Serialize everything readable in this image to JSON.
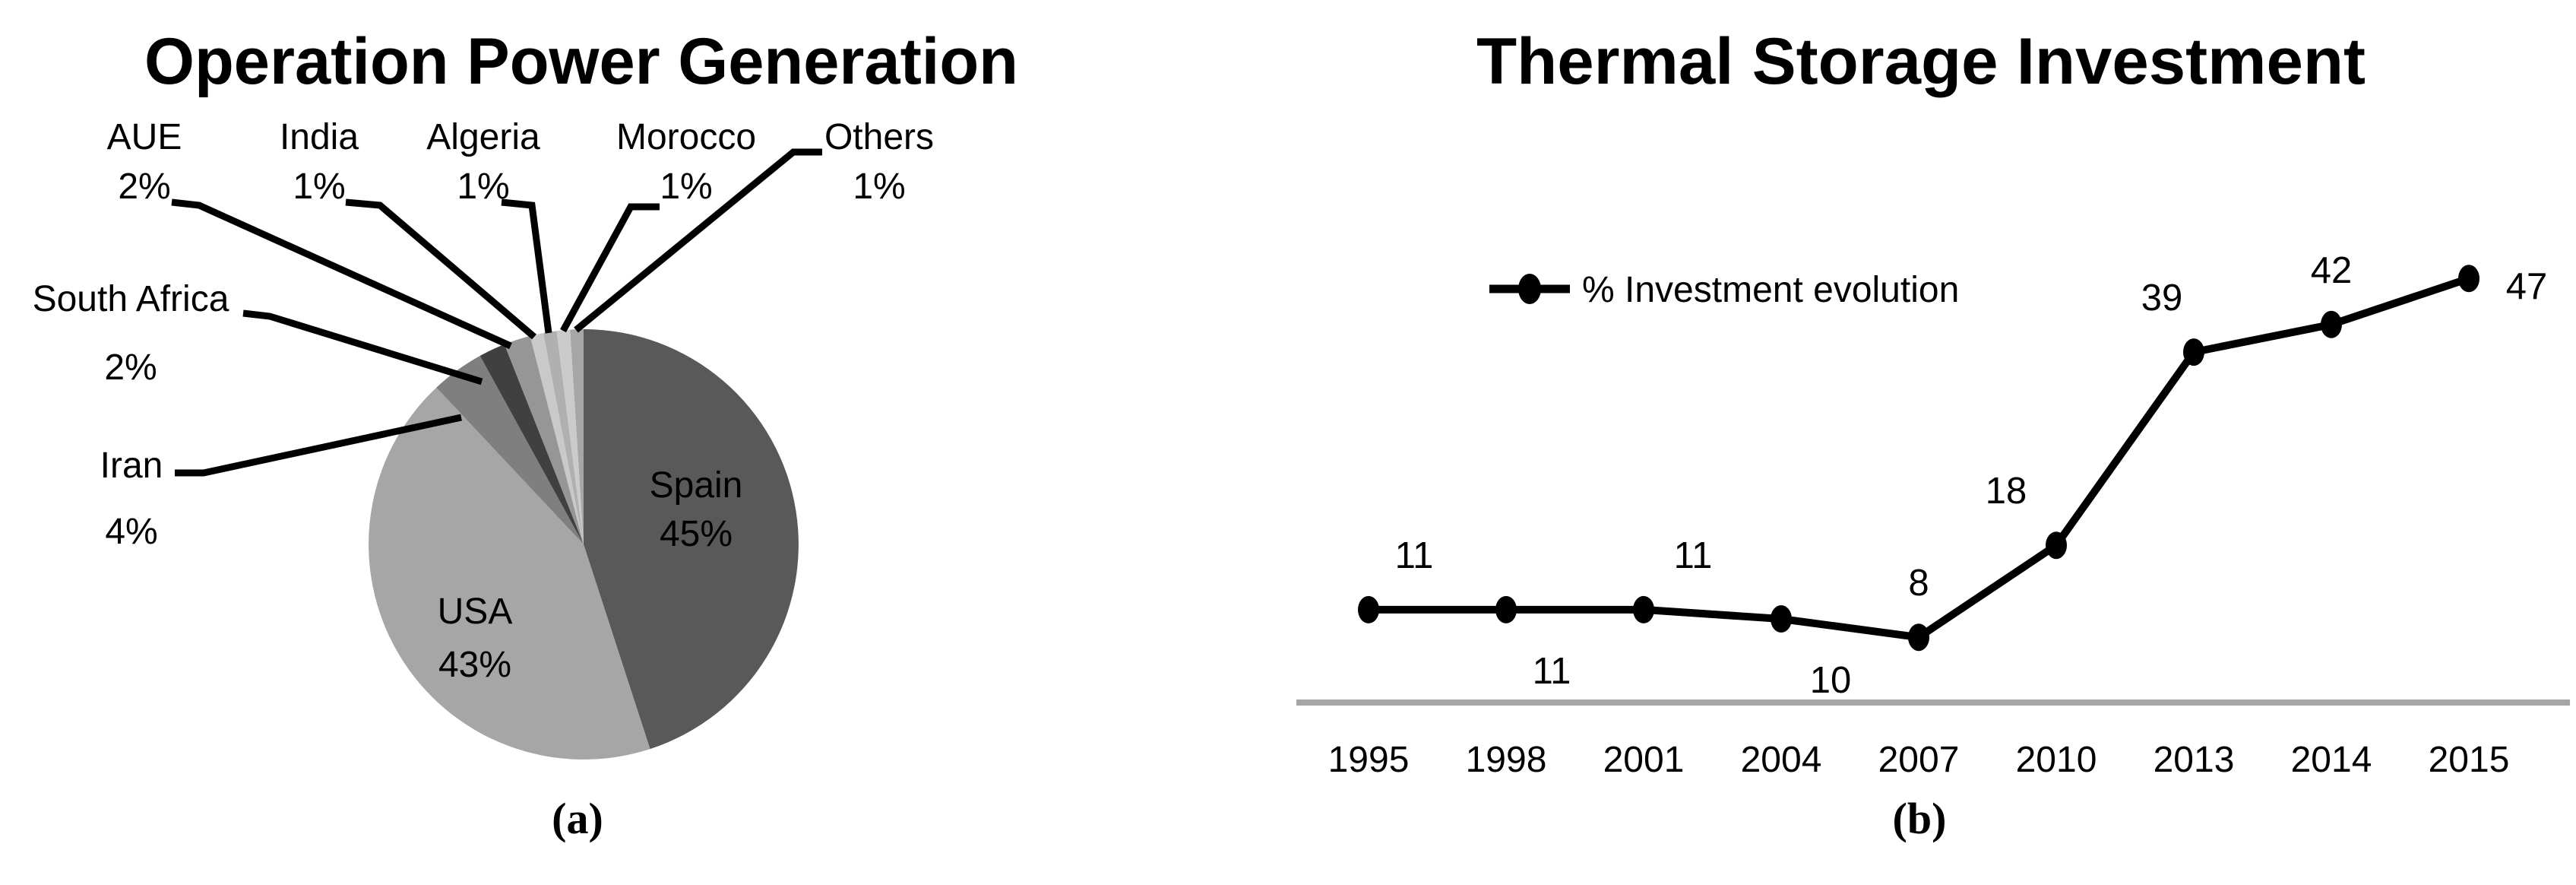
{
  "figure": {
    "background": "#ffffff",
    "panel_a_caption": "(a)",
    "panel_b_caption": "(b)"
  },
  "chart_data": [
    {
      "type": "pie",
      "title": "Operation Power Generation",
      "caption": "(a)",
      "start_angle_deg": 0,
      "direction": "clockwise",
      "slices": [
        {
          "label": "Spain",
          "value": 45,
          "pct_text": "45%",
          "color": "#595959",
          "label_placement": "inside",
          "label_color": "#ffffff"
        },
        {
          "label": "USA",
          "value": 43,
          "pct_text": "43%",
          "color": "#a6a6a6",
          "label_placement": "inside",
          "label_color": "#000000"
        },
        {
          "label": "Iran",
          "value": 4,
          "pct_text": "4%",
          "color": "#7f7f7f",
          "label_placement": "outside",
          "label_color": "#000000"
        },
        {
          "label": "South Africa",
          "value": 2,
          "pct_text": "2%",
          "color": "#404040",
          "label_placement": "outside",
          "label_color": "#000000"
        },
        {
          "label": "AUE",
          "value": 2,
          "pct_text": "2%",
          "color": "#969696",
          "label_placement": "outside",
          "label_color": "#000000"
        },
        {
          "label": "India",
          "value": 1,
          "pct_text": "1%",
          "color": "#c9c9c9",
          "label_placement": "outside",
          "label_color": "#000000"
        },
        {
          "label": "Algeria",
          "value": 1,
          "pct_text": "1%",
          "color": "#b0b0b0",
          "label_placement": "outside",
          "label_color": "#000000"
        },
        {
          "label": "Morocco",
          "value": 1,
          "pct_text": "1%",
          "color": "#cbcbcb",
          "label_placement": "outside",
          "label_color": "#000000"
        },
        {
          "label": "Others",
          "value": 1,
          "pct_text": "1%",
          "color": "#a6a6a6",
          "label_placement": "outside",
          "label_color": "#000000"
        }
      ]
    },
    {
      "type": "line",
      "title": "Thermal Storage Investment",
      "caption": "(b)",
      "categories": [
        "1995",
        "1998",
        "2001",
        "2004",
        "2007",
        "2010",
        "2013",
        "2014",
        "2015"
      ],
      "series": [
        {
          "name": "% Investment evolution",
          "values": [
            11,
            11,
            11,
            10,
            8,
            18,
            39,
            42,
            47
          ]
        }
      ],
      "data_label_positions": [
        "above",
        "below",
        "above",
        "below",
        "above",
        "above",
        "above",
        "above",
        "right"
      ],
      "line_color": "#000000",
      "marker": "filled-circle",
      "axis_line_color": "#a6a6a6",
      "y_axis_visible": false,
      "grid": "off",
      "legend_position": "top-left-inside",
      "ylim": [
        0,
        50
      ]
    }
  ]
}
